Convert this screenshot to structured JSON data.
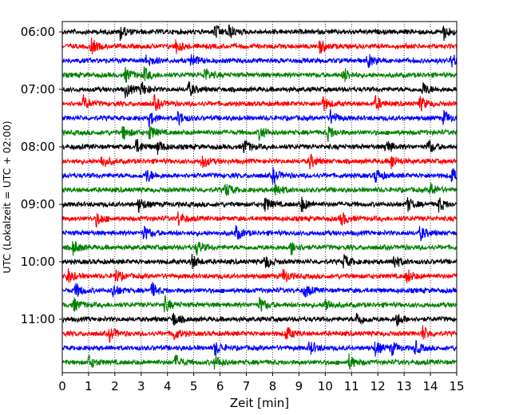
{
  "chart_data": {
    "type": "line",
    "title": "",
    "xlabel": "Zeit  [min]",
    "ylabel": "UTC (Lokalzeit = UTC + 02:00)",
    "xlim": [
      0,
      15
    ],
    "x_ticks": [
      "0",
      "1",
      "2",
      "3",
      "4",
      "5",
      "6",
      "7",
      "8",
      "9",
      "10",
      "11",
      "12",
      "13",
      "14",
      "15"
    ],
    "y_tick_labels": [
      "06:00",
      "07:00",
      "08:00",
      "09:00",
      "10:00",
      "11:00"
    ],
    "rows_per_hour": 4,
    "row_start_times": [
      "06:00",
      "06:15",
      "06:30",
      "06:45",
      "07:00",
      "07:15",
      "07:30",
      "07:45",
      "08:00",
      "08:15",
      "08:30",
      "08:45",
      "09:00",
      "09:15",
      "09:30",
      "09:45",
      "10:00",
      "10:15",
      "10:30",
      "10:45",
      "11:00",
      "11:15",
      "11:30",
      "11:45"
    ],
    "trace_colors": [
      "#000000",
      "#ff0000",
      "#0000ff",
      "#008000"
    ],
    "grid": "vertical dotted at each minute",
    "series": [
      {
        "row_start": "06:00",
        "events_min": [
          2.2,
          5.8,
          6.3,
          14.5
        ]
      },
      {
        "row_start": "06:15",
        "events_min": [
          1.1,
          4.3,
          9.8
        ]
      },
      {
        "row_start": "06:30",
        "events_min": [
          3.2,
          4.9,
          11.6,
          14.8
        ]
      },
      {
        "row_start": "06:45",
        "events_min": [
          2.4,
          3.1,
          5.4,
          10.7
        ]
      },
      {
        "row_start": "07:00",
        "events_min": [
          2.4,
          3.0,
          4.8,
          13.7
        ]
      },
      {
        "row_start": "07:15",
        "events_min": [
          0.8,
          3.5,
          9.9,
          11.9,
          13.6
        ]
      },
      {
        "row_start": "07:30",
        "events_min": [
          3.3,
          4.4,
          10.2,
          14.5
        ]
      },
      {
        "row_start": "07:45",
        "events_min": [
          2.3,
          3.3,
          7.5,
          10.1
        ]
      },
      {
        "row_start": "08:00",
        "events_min": [
          2.8,
          3.6,
          6.9,
          12.3,
          13.9
        ]
      },
      {
        "row_start": "08:15",
        "events_min": [
          1.5,
          5.3,
          9.4,
          12.5
        ]
      },
      {
        "row_start": "08:30",
        "events_min": [
          3.2,
          8.0,
          11.9,
          14.8
        ]
      },
      {
        "row_start": "08:45",
        "events_min": [
          6.2,
          8.1,
          14.0
        ]
      },
      {
        "row_start": "09:00",
        "events_min": [
          2.9,
          7.7,
          9.1,
          13.1,
          14.3
        ]
      },
      {
        "row_start": "09:15",
        "events_min": [
          1.3,
          4.4,
          10.6
        ]
      },
      {
        "row_start": "09:30",
        "events_min": [
          3.1,
          6.6,
          13.6
        ]
      },
      {
        "row_start": "09:45",
        "events_min": [
          0.4,
          5.1,
          8.7
        ]
      },
      {
        "row_start": "10:00",
        "events_min": [
          4.9,
          7.7,
          10.7,
          12.6
        ]
      },
      {
        "row_start": "10:15",
        "events_min": [
          0.2,
          2.0,
          8.4,
          13.1
        ]
      },
      {
        "row_start": "10:30",
        "events_min": [
          0.5,
          1.9,
          3.4,
          9.2
        ]
      },
      {
        "row_start": "10:45",
        "events_min": [
          0.4,
          3.9,
          7.5,
          10.0
        ]
      },
      {
        "row_start": "11:00",
        "events_min": [
          4.2,
          11.2,
          12.7
        ]
      },
      {
        "row_start": "11:15",
        "events_min": [
          1.8,
          4.2,
          8.5,
          13.7
        ]
      },
      {
        "row_start": "11:30",
        "events_min": [
          5.8,
          9.4,
          11.9,
          12.5,
          13.4
        ]
      },
      {
        "row_start": "11:45",
        "events_min": [
          1.0,
          4.3,
          5.8,
          10.9
        ]
      }
    ]
  }
}
